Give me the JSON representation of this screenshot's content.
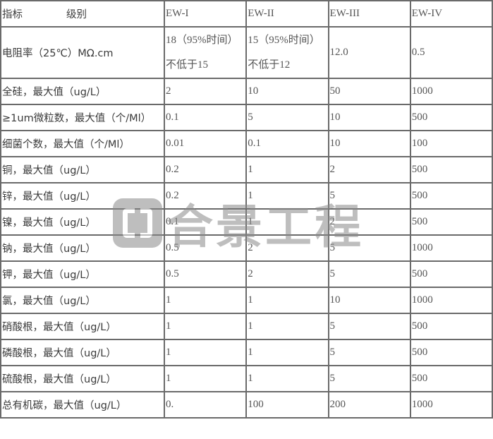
{
  "header": {
    "indicator": "指标",
    "grade": "级别",
    "columns": [
      "EW-I",
      "EW-II",
      "EW-III",
      "EW-IV"
    ]
  },
  "resistivity": {
    "label": "电阻率（25℃）MΩ.cm",
    "ew1": [
      "18（95%时间）",
      "不低于15"
    ],
    "ew2": [
      "15（95%时间）",
      "不低于12"
    ],
    "ew3": "12.0",
    "ew4": "0.5"
  },
  "rows": [
    {
      "label": "全硅，最大值（ug/L）",
      "values": [
        "2",
        "10",
        "50",
        "1000"
      ]
    },
    {
      "label": "≥1um微粒数，最大值（个/Ml）",
      "values": [
        "0.1",
        "5",
        "10",
        "500"
      ]
    },
    {
      "label": "细菌个数，最大值（个/Ml）",
      "values": [
        "0.01",
        "0.1",
        "10",
        "100"
      ]
    },
    {
      "label": "铜，最大值（ug/L）",
      "values": [
        "0.2",
        "1",
        "2",
        "500"
      ]
    },
    {
      "label": "锌，最大值（ug/L）",
      "values": [
        "0.2",
        "1",
        "5",
        "500"
      ]
    },
    {
      "label": "镍，最大值（ug/L）",
      "values": [
        "0.1",
        "1",
        "2",
        "500"
      ]
    },
    {
      "label": "钠，最大值（ug/L）",
      "values": [
        "0.5",
        "2",
        "5",
        "1000"
      ]
    },
    {
      "label": "钾，最大值（ug/L）",
      "values": [
        "0.5",
        "2",
        "5",
        "500"
      ]
    },
    {
      "label": "氯，最大值（ug/L）",
      "values": [
        "1",
        "1",
        "10",
        "1000"
      ]
    },
    {
      "label": "硝酸根，最大值（ug/L）",
      "values": [
        "1",
        "1",
        "5",
        "500"
      ]
    },
    {
      "label": "磷酸根，最大值（ug/L）",
      "values": [
        "1",
        "1",
        "5",
        "500"
      ]
    },
    {
      "label": "硫酸根，最大值（ug/L）",
      "values": [
        "1",
        "1",
        "5",
        "500"
      ]
    },
    {
      "label": "总有机碳，最大值（ug/L）",
      "values": [
        "0.",
        "100",
        "200",
        "1000"
      ]
    }
  ],
  "watermark": {
    "text": "合景工程"
  }
}
